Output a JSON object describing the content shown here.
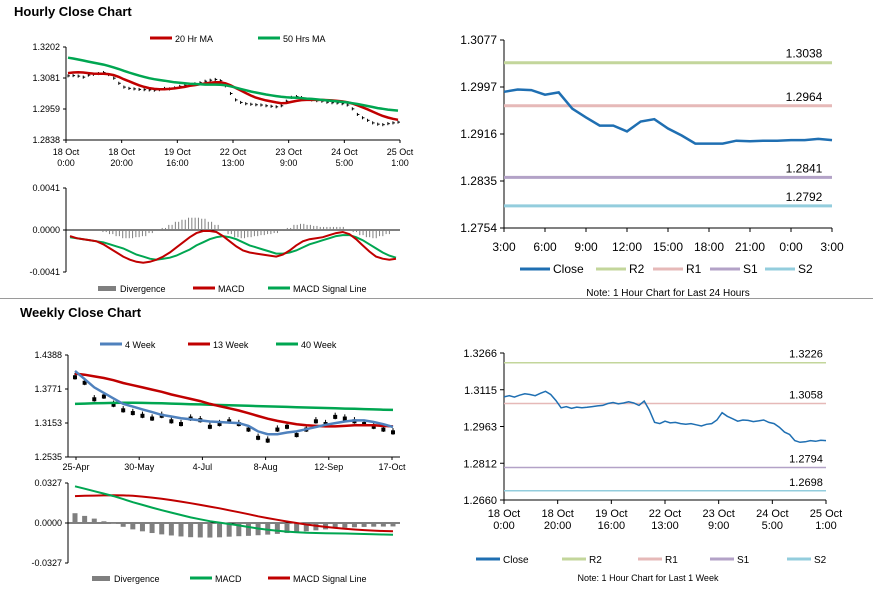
{
  "sections": {
    "hourly_title": "Hourly Close Chart",
    "weekly_title": "Weekly Close Chart"
  },
  "colors": {
    "ma20": "#c00000",
    "ma50": "#00a651",
    "week4": "#4f81bd",
    "week13": "#c00000",
    "week40": "#00a651",
    "close": "#1f6fb2",
    "r2": "#c3d69b",
    "r1": "#e6b9b8",
    "s1": "#b3a2c7",
    "s2": "#93cddd",
    "divergence": "#7f7f7f",
    "macd_hourly": "#c00000",
    "signal_hourly": "#00a651",
    "macd_weekly": "#00a651",
    "signal_weekly": "#c00000",
    "ohlc": "#000000"
  },
  "chart_data": [
    {
      "id": "hourly_price",
      "type": "line",
      "legend": [
        "20 Hr MA",
        "50 Hrs MA"
      ],
      "ylim": [
        1.2838,
        1.3202
      ],
      "yticks": [
        "1.3202",
        "1.3081",
        "1.2959",
        "1.2838"
      ],
      "xticks": [
        "18 Oct\n0:00",
        "18 Oct\n20:00",
        "19 Oct\n16:00",
        "22 Oct\n13:00",
        "23 Oct\n9:00",
        "24 Oct\n5:00",
        "25 Oct\n1:00"
      ],
      "price": [
        1.3089,
        1.309,
        1.3088,
        1.3084,
        1.3092,
        1.3095,
        1.3098,
        1.3102,
        1.3094,
        1.308,
        1.306,
        1.3045,
        1.304,
        1.3038,
        1.3036,
        1.3035,
        1.3034,
        1.3033,
        1.3035,
        1.304,
        1.3038,
        1.3042,
        1.3048,
        1.3052,
        1.3055,
        1.3058,
        1.3062,
        1.3068,
        1.3072,
        1.3075,
        1.307,
        1.305,
        1.302,
        1.2995,
        1.2985,
        1.298,
        1.2978,
        1.2976,
        1.2975,
        1.2972,
        1.297,
        1.2968,
        1.2972,
        1.299,
        1.3005,
        1.3008,
        1.3004,
        1.2998,
        1.2995,
        1.2992,
        1.299,
        1.2986,
        1.2984,
        1.2983,
        1.298,
        1.2975,
        1.296,
        1.2938,
        1.2925,
        1.2915,
        1.2905,
        1.29,
        1.2898,
        1.2902,
        1.2905,
        1.2908
      ],
      "series": [
        {
          "name": "20 Hr MA",
          "values": [
            1.31,
            1.3102,
            1.3103,
            1.3102,
            1.31,
            1.3098,
            1.3097,
            1.3097,
            1.3096,
            1.3092,
            1.3085,
            1.3076,
            1.3068,
            1.306,
            1.3052,
            1.3046,
            1.3041,
            1.3038,
            1.3037,
            1.3037,
            1.3038,
            1.304,
            1.3043,
            1.3046,
            1.305,
            1.3053,
            1.3056,
            1.3059,
            1.3062,
            1.3064,
            1.3064,
            1.306,
            1.3052,
            1.3042,
            1.3032,
            1.3022,
            1.3012,
            1.3004,
            1.2998,
            1.2993,
            1.2989,
            1.2985,
            1.2982,
            1.2983,
            1.2987,
            1.2991,
            1.2994,
            1.2995,
            1.2995,
            1.2995,
            1.2995,
            1.2994,
            1.2993,
            1.2991,
            1.2989,
            1.2986,
            1.2981,
            1.2974,
            1.2966,
            1.2958,
            1.2949,
            1.294,
            1.2932,
            1.2926,
            1.2921,
            1.2917
          ]
        },
        {
          "name": "50 Hrs MA",
          "values": [
            1.316,
            1.3157,
            1.3153,
            1.3149,
            1.3145,
            1.3141,
            1.3137,
            1.3133,
            1.3128,
            1.3122,
            1.3116,
            1.3109,
            1.3102,
            1.3096,
            1.309,
            1.3085,
            1.308,
            1.3076,
            1.3073,
            1.307,
            1.3067,
            1.3064,
            1.3062,
            1.306,
            1.3058,
            1.3057,
            1.3056,
            1.3055,
            1.3055,
            1.3055,
            1.3054,
            1.3052,
            1.3048,
            1.3043,
            1.3038,
            1.3033,
            1.3028,
            1.3024,
            1.302,
            1.3016,
            1.3013,
            1.301,
            1.3007,
            1.3005,
            1.3004,
            1.3003,
            1.3002,
            1.3,
            1.2999,
            1.2997,
            1.2995,
            1.2993,
            1.2991,
            1.2989,
            1.2987,
            1.2985,
            1.2982,
            1.2979,
            1.2975,
            1.2971,
            1.2967,
            1.2963,
            1.296,
            1.2957,
            1.2955,
            1.2953
          ]
        }
      ]
    },
    {
      "id": "hourly_macd",
      "type": "line",
      "legend": [
        "Divergence",
        "MACD",
        "MACD Signal Line"
      ],
      "ylim": [
        -0.0041,
        0.0041
      ],
      "yticks": [
        "0.0041",
        "0.0000",
        "-0.0041"
      ],
      "series": [
        {
          "name": "MACD",
          "values": [
            -0.0006,
            -0.0008,
            -0.0009,
            -0.001,
            -0.0011,
            -0.0014,
            -0.0018,
            -0.0022,
            -0.0026,
            -0.0029,
            -0.0031,
            -0.0032,
            -0.0031,
            -0.0029,
            -0.0026,
            -0.0022,
            -0.0017,
            -0.0012,
            -0.0007,
            -0.0003,
            -0.0001,
            -0.0001,
            -0.0002,
            -0.0006,
            -0.0011,
            -0.0016,
            -0.002,
            -0.0022,
            -0.0023,
            -0.0024,
            -0.0025,
            -0.0026,
            -0.0024,
            -0.002,
            -0.0015,
            -0.0011,
            -0.0009,
            -0.0008,
            -0.0007,
            -0.0005,
            -0.0003,
            -0.0002,
            -0.0004,
            -0.0009,
            -0.0015,
            -0.0021,
            -0.0026,
            -0.0028,
            -0.0029,
            -0.0028
          ]
        },
        {
          "name": "MACD Signal Line",
          "values": [
            -0.0007,
            -0.0008,
            -0.0009,
            -0.001,
            -0.0011,
            -0.0012,
            -0.0014,
            -0.0016,
            -0.0018,
            -0.0021,
            -0.0024,
            -0.0026,
            -0.0028,
            -0.0029,
            -0.0028,
            -0.0027,
            -0.0025,
            -0.0022,
            -0.0019,
            -0.0015,
            -0.0012,
            -0.0009,
            -0.0007,
            -0.0006,
            -0.0007,
            -0.0009,
            -0.0012,
            -0.0015,
            -0.0017,
            -0.0019,
            -0.0021,
            -0.0023,
            -0.0023,
            -0.0022,
            -0.002,
            -0.0017,
            -0.0014,
            -0.0012,
            -0.001,
            -0.0008,
            -0.0006,
            -0.0005,
            -0.0005,
            -0.0007,
            -0.001,
            -0.0014,
            -0.0018,
            -0.0022,
            -0.0025,
            -0.0027
          ]
        },
        {
          "name": "Divergence",
          "values": [
            0.0001,
            0.0,
            0.0,
            0.0,
            0.0,
            -0.0002,
            -0.0004,
            -0.0006,
            -0.0008,
            -0.0008,
            -0.0007,
            -0.0006,
            -0.0003,
            0.0,
            0.0002,
            0.0005,
            0.0008,
            0.001,
            0.0012,
            0.0012,
            0.0011,
            0.0008,
            0.0005,
            0.0,
            -0.0004,
            -0.0007,
            -0.0008,
            -0.0007,
            -0.0006,
            -0.0005,
            -0.0004,
            -0.0003,
            -0.0001,
            0.0002,
            0.0005,
            0.0006,
            0.0005,
            0.0004,
            0.0003,
            0.0003,
            0.0003,
            0.0003,
            0.0001,
            -0.0002,
            -0.0005,
            -0.0007,
            -0.0008,
            -0.0006,
            -0.0004,
            -0.0001
          ]
        }
      ]
    },
    {
      "id": "hourly_24h",
      "type": "line",
      "ylim": [
        1.2754,
        1.3077
      ],
      "yticks": [
        "1.3077",
        "1.2997",
        "1.2916",
        "1.2835",
        "1.2754"
      ],
      "xticks": [
        "3:00",
        "6:00",
        "9:00",
        "12:00",
        "15:00",
        "18:00",
        "21:00",
        "0:00",
        "3:00"
      ],
      "legend": [
        "Close",
        "R2",
        "R1",
        "S1",
        "S2"
      ],
      "note": "Note: 1 Hour Chart for Last 24 Hours",
      "levels": {
        "R2": 1.3038,
        "R1": 1.2964,
        "S1": 1.2841,
        "S2": 1.2792
      },
      "level_labels": {
        "R2": "1.3038",
        "R1": "1.2964",
        "S1": "1.2841",
        "S2": "1.2792"
      },
      "close": [
        1.2988,
        1.2992,
        1.2991,
        1.2983,
        1.2987,
        1.2959,
        1.2944,
        1.293,
        1.293,
        1.292,
        1.2937,
        1.2941,
        1.2925,
        1.2913,
        1.2899,
        1.2899,
        1.2899,
        1.2904,
        1.2903,
        1.2904,
        1.2904,
        1.2905,
        1.2905,
        1.2907,
        1.2905
      ]
    },
    {
      "id": "weekly_price",
      "type": "line",
      "legend": [
        "4 Week",
        "13 Week",
        "40 Week"
      ],
      "ylim": [
        1.2535,
        1.4388
      ],
      "yticks": [
        "1.4388",
        "1.3771",
        "1.3153",
        "1.2535"
      ],
      "xticks": [
        "25-Apr",
        "30-May",
        "4-Jul",
        "8-Aug",
        "12-Sep",
        "17-Oct"
      ],
      "ohlc_close": [
        1.4,
        1.39,
        1.36,
        1.365,
        1.35,
        1.34,
        1.335,
        1.33,
        1.325,
        1.33,
        1.32,
        1.315,
        1.325,
        1.322,
        1.31,
        1.315,
        1.32,
        1.315,
        1.305,
        1.29,
        1.285,
        1.305,
        1.31,
        1.295,
        1.305,
        1.32,
        1.315,
        1.328,
        1.325,
        1.32,
        1.315,
        1.31,
        1.305,
        1.3
      ],
      "series": [
        {
          "name": "4 Week",
          "values": [
            1.41,
            1.395,
            1.38,
            1.37,
            1.36,
            1.35,
            1.345,
            1.34,
            1.335,
            1.33,
            1.327,
            1.324,
            1.322,
            1.32,
            1.318,
            1.317,
            1.316,
            1.315,
            1.31,
            1.3,
            1.295,
            1.295,
            1.298,
            1.3,
            1.304,
            1.308,
            1.312,
            1.315,
            1.318,
            1.32,
            1.32,
            1.317,
            1.313,
            1.308
          ]
        },
        {
          "name": "13 Week",
          "values": [
            1.405,
            1.403,
            1.4,
            1.397,
            1.393,
            1.388,
            1.384,
            1.38,
            1.376,
            1.372,
            1.367,
            1.363,
            1.359,
            1.355,
            1.35,
            1.346,
            1.342,
            1.338,
            1.333,
            1.328,
            1.323,
            1.319,
            1.316,
            1.313,
            1.311,
            1.31,
            1.309,
            1.309,
            1.31,
            1.311,
            1.311,
            1.311,
            1.31,
            1.309
          ]
        },
        {
          "name": "40 Week",
          "values": [
            1.35,
            1.3505,
            1.351,
            1.3515,
            1.3518,
            1.352,
            1.352,
            1.3518,
            1.3515,
            1.351,
            1.3505,
            1.35,
            1.3495,
            1.349,
            1.3485,
            1.348,
            1.3475,
            1.347,
            1.3465,
            1.346,
            1.3455,
            1.345,
            1.3445,
            1.344,
            1.3435,
            1.343,
            1.3425,
            1.342,
            1.3415,
            1.341,
            1.3405,
            1.34,
            1.3395,
            1.339
          ]
        }
      ]
    },
    {
      "id": "weekly_macd",
      "type": "line",
      "legend": [
        "Divergence",
        "MACD",
        "MACD Signal Line"
      ],
      "ylim": [
        -0.0327,
        0.0327
      ],
      "yticks": [
        "0.0327",
        "0.0000",
        "-0.0327"
      ],
      "series": [
        {
          "name": "MACD",
          "values": [
            0.03,
            0.028,
            0.026,
            0.024,
            0.022,
            0.0195,
            0.017,
            0.0148,
            0.0126,
            0.0105,
            0.0085,
            0.0065,
            0.0046,
            0.003,
            0.0015,
            0.0003,
            -0.0008,
            -0.002,
            -0.0033,
            -0.0045,
            -0.0055,
            -0.0063,
            -0.007,
            -0.0075,
            -0.008,
            -0.0082,
            -0.0084,
            -0.0085,
            -0.0086,
            -0.0088,
            -0.009,
            -0.0092,
            -0.0094,
            -0.0096
          ]
        },
        {
          "name": "MACD Signal Line",
          "values": [
            0.022,
            0.0222,
            0.0224,
            0.0226,
            0.0227,
            0.0226,
            0.0222,
            0.0216,
            0.0208,
            0.0198,
            0.0187,
            0.0175,
            0.0162,
            0.0148,
            0.0134,
            0.012,
            0.0104,
            0.0088,
            0.0072,
            0.0055,
            0.004,
            0.0026,
            0.0012,
            0.0,
            -0.0012,
            -0.0022,
            -0.0032,
            -0.004,
            -0.0047,
            -0.0053,
            -0.0058,
            -0.0062,
            -0.0065,
            -0.0068
          ]
        },
        {
          "name": "Divergence",
          "values": [
            0.008,
            0.0058,
            0.0036,
            0.0014,
            -0.0007,
            -0.0031,
            -0.0052,
            -0.0068,
            -0.0082,
            -0.0093,
            -0.0102,
            -0.011,
            -0.0116,
            -0.0118,
            -0.0119,
            -0.0117,
            -0.0112,
            -0.0108,
            -0.0105,
            -0.01,
            -0.0095,
            -0.0089,
            -0.0082,
            -0.0075,
            -0.0068,
            -0.006,
            -0.0052,
            -0.0045,
            -0.0039,
            -0.0035,
            -0.0032,
            -0.003,
            -0.0029,
            -0.0028
          ]
        }
      ]
    },
    {
      "id": "weekly_1w",
      "type": "line",
      "ylim": [
        1.266,
        1.3266
      ],
      "yticks": [
        "1.3266",
        "1.3115",
        "1.2963",
        "1.2812",
        "1.2660"
      ],
      "xticks": [
        "18 Oct\n0:00",
        "18 Oct\n20:00",
        "19 Oct\n16:00",
        "22 Oct\n13:00",
        "23 Oct\n9:00",
        "24 Oct\n5:00",
        "25 Oct\n1:00"
      ],
      "legend": [
        "Close",
        "R2",
        "R1",
        "S1",
        "S2"
      ],
      "note": "Note: 1 Hour Chart for Last 1 Week",
      "levels": {
        "R2": 1.3226,
        "R1": 1.3058,
        "S1": 1.2794,
        "S2": 1.2698
      },
      "level_labels": {
        "R2": "1.3226",
        "R1": "1.3058",
        "S1": "1.2794",
        "S2": "1.2698"
      },
      "close": [
        1.3085,
        1.309,
        1.3084,
        1.3092,
        1.3098,
        1.3095,
        1.309,
        1.31,
        1.3108,
        1.3095,
        1.307,
        1.304,
        1.3045,
        1.3038,
        1.3043,
        1.304,
        1.3042,
        1.3045,
        1.3048,
        1.305,
        1.3058,
        1.3062,
        1.3056,
        1.306,
        1.3065,
        1.306,
        1.305,
        1.3068,
        1.303,
        1.298,
        1.2975,
        1.2985,
        1.2978,
        1.298,
        1.2975,
        1.2972,
        1.2975,
        1.297,
        1.2965,
        1.2972,
        1.2975,
        1.299,
        1.302,
        1.3005,
        1.2995,
        1.2985,
        1.299,
        1.2988,
        1.2983,
        1.2986,
        1.299,
        1.298,
        1.2975,
        1.296,
        1.294,
        1.293,
        1.2905,
        1.2898,
        1.29,
        1.2905,
        1.2902,
        1.2906,
        1.2905
      ]
    }
  ]
}
